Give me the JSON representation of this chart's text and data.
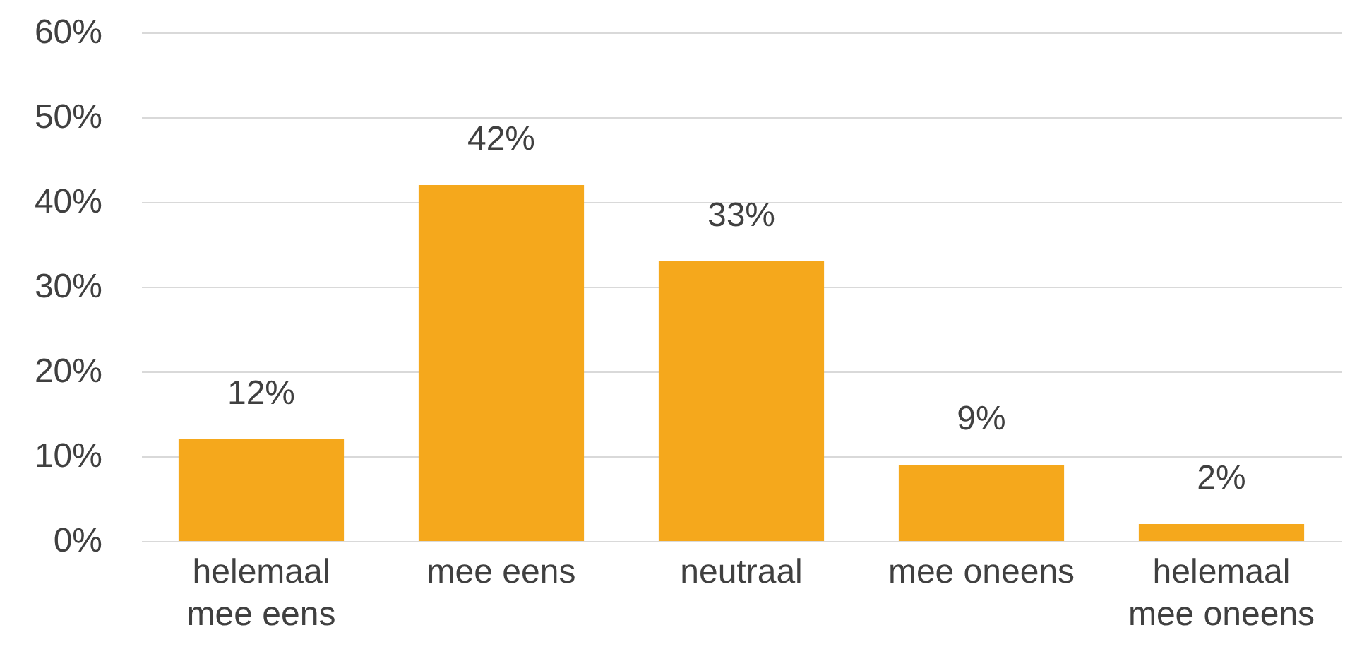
{
  "chart_data": {
    "type": "bar",
    "categories": [
      "helemaal mee eens",
      "mee eens",
      "neutraal",
      "mee oneens",
      "helemaal mee oneens"
    ],
    "values": [
      12,
      42,
      33,
      9,
      2
    ],
    "value_labels": [
      "12%",
      "42%",
      "33%",
      "9%",
      "2%"
    ],
    "color": "#f5a81c",
    "ylim": [
      0,
      60
    ],
    "yticks": [
      {
        "value": 0,
        "label": "0%"
      },
      {
        "value": 10,
        "label": "10%"
      },
      {
        "value": 20,
        "label": "20%"
      },
      {
        "value": 30,
        "label": "30%"
      },
      {
        "value": 40,
        "label": "40%"
      },
      {
        "value": 50,
        "label": "50%"
      },
      {
        "value": 60,
        "label": "60%"
      }
    ],
    "grid": "y"
  }
}
